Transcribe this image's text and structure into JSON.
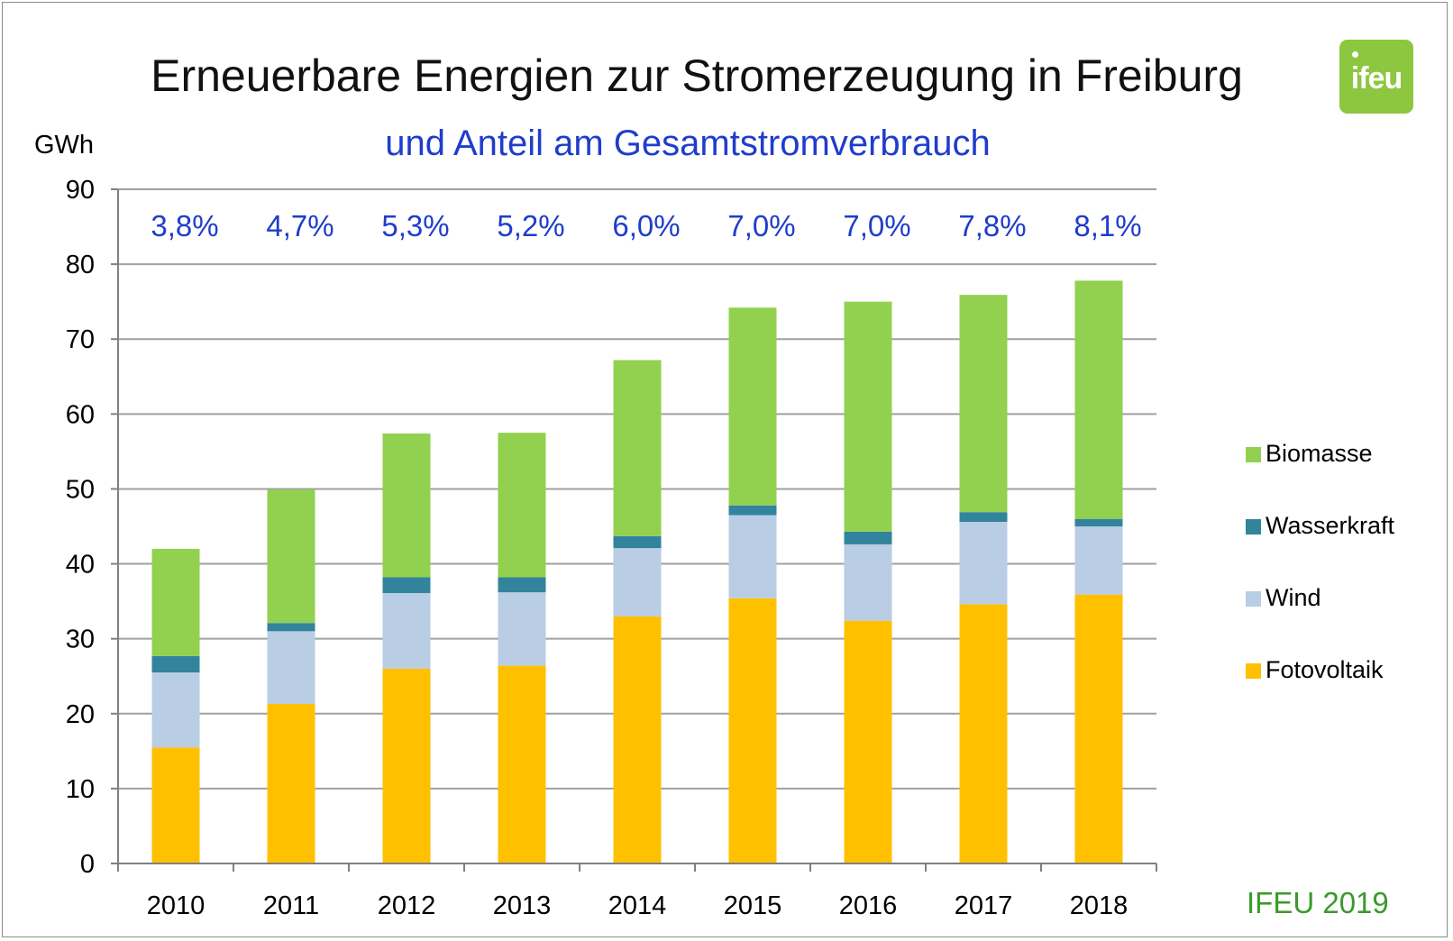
{
  "colors": {
    "fotovoltaik": "#ffc000",
    "wind": "#b9cde5",
    "wasserkraft": "#31849b",
    "biomasse": "#92d050",
    "subtitle": "#1f3dcc",
    "credit": "#3a9a2a",
    "logo": "#8dc63f",
    "grid": "#a0a0a0"
  },
  "logo": {
    "text": "ifeu"
  },
  "credit": "IFEU 2019",
  "chart_data": {
    "type": "bar",
    "stacked": true,
    "title": "Erneuerbare Energien zur Stromerzeugung in Freiburg",
    "subtitle": "und Anteil am Gesamtstromverbrauch",
    "ylabel": "GWh",
    "xlabel": "",
    "ylim": [
      0,
      90
    ],
    "yticks": [
      0,
      10,
      20,
      30,
      40,
      50,
      60,
      70,
      80,
      90
    ],
    "grid": true,
    "legend_position": "right",
    "categories": [
      "2010",
      "2011",
      "2012",
      "2013",
      "2014",
      "2015",
      "2016",
      "2017",
      "2018"
    ],
    "series": [
      {
        "name": "Fotovoltaik",
        "color_key": "fotovoltaik",
        "values": [
          15.5,
          21.3,
          26.0,
          26.4,
          33.0,
          35.4,
          32.4,
          34.6,
          35.9
        ]
      },
      {
        "name": "Wind",
        "color_key": "wind",
        "values": [
          10.0,
          9.7,
          10.1,
          9.8,
          9.1,
          11.1,
          10.2,
          11.0,
          9.1
        ]
      },
      {
        "name": "Wasserkraft",
        "color_key": "wasserkraft",
        "values": [
          2.2,
          1.1,
          2.1,
          2.0,
          1.6,
          1.3,
          1.7,
          1.3,
          1.0
        ]
      },
      {
        "name": "Biomasse",
        "color_key": "biomasse",
        "values": [
          14.3,
          17.8,
          19.2,
          19.3,
          23.5,
          26.4,
          30.7,
          29.0,
          31.8
        ]
      }
    ],
    "legend_order": [
      "Biomasse",
      "Wasserkraft",
      "Wind",
      "Fotovoltaik"
    ],
    "annotations": [
      "3,8%",
      "4,7%",
      "5,3%",
      "5,2%",
      "6,0%",
      "7,0%",
      "7,0%",
      "7,8%",
      "8,1%"
    ]
  }
}
